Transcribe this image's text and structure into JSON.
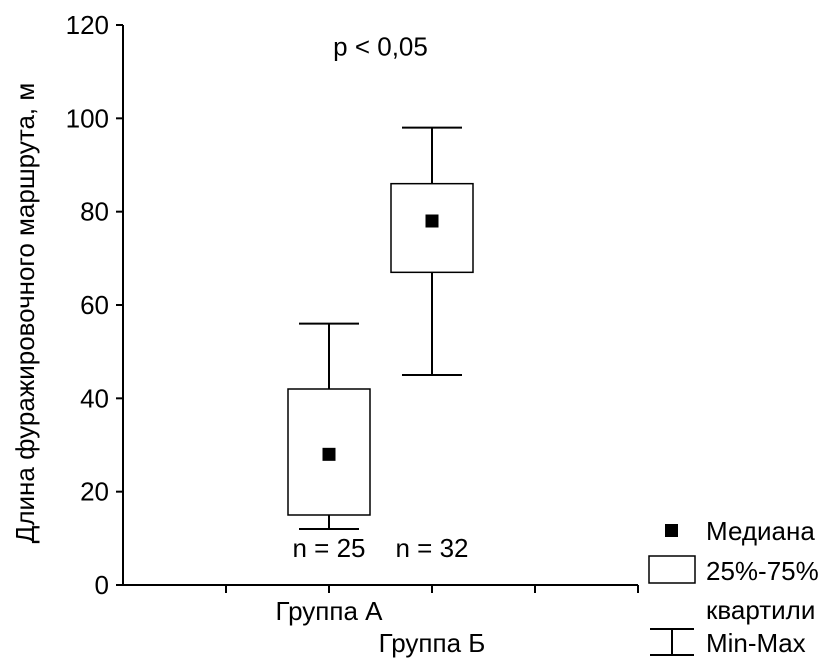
{
  "chart_data": {
    "type": "boxplot",
    "categories": [
      "Группа А",
      "Группа Б"
    ],
    "boxes": [
      {
        "category": "Группа А",
        "min": 12,
        "q1": 15,
        "median": 28,
        "q3": 42,
        "max": 56,
        "n_label": "n = 25"
      },
      {
        "category": "Группа Б",
        "min": 45,
        "q1": 67,
        "median": 78,
        "q3": 86,
        "max": 98,
        "n_label": "n = 32"
      }
    ],
    "ylabel": "Длина фуражировочного маршрута, м",
    "ylim": [
      0,
      120
    ],
    "yticks": [
      0,
      20,
      40,
      60,
      80,
      100,
      120
    ],
    "annotation": "p < 0,05",
    "grid": false,
    "legend": {
      "position": "right-bottom",
      "items": [
        {
          "marker": "square",
          "label": "Медиана"
        },
        {
          "marker": "box",
          "label": "25%-75%",
          "label2": "квартили"
        },
        {
          "marker": "whisker",
          "label": "Min-Max"
        }
      ]
    },
    "colors": {
      "foreground": "#000000",
      "background": "#ffffff"
    }
  }
}
